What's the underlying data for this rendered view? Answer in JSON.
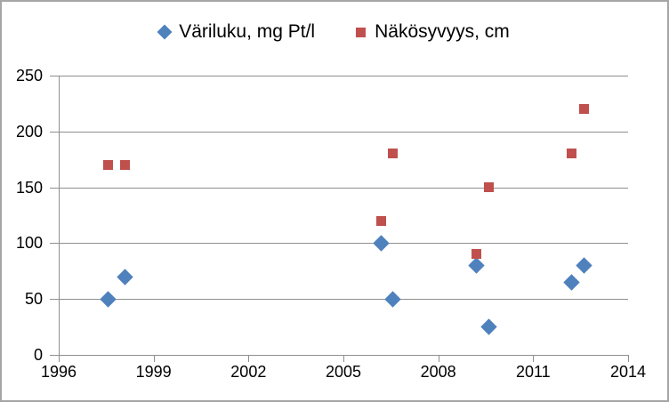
{
  "chart_data": {
    "type": "scatter",
    "title": "",
    "xlabel": "",
    "ylabel": "",
    "grid": "horizontal",
    "legend_position": "top",
    "x_axis": {
      "min": 1996,
      "max": 2014,
      "tick_interval": 3,
      "ticks": [
        1996,
        1999,
        2002,
        2005,
        2008,
        2011,
        2014
      ]
    },
    "y_axis": {
      "min": 0,
      "max": 250,
      "tick_interval": 50,
      "ticks": [
        0,
        50,
        100,
        150,
        200,
        250
      ]
    },
    "series": [
      {
        "name": "Väriluku, mg Pt/l",
        "marker": "diamond",
        "color": "#4F81BD",
        "points": [
          {
            "x": 1997.55,
            "y": 50
          },
          {
            "x": 1998.1,
            "y": 70
          },
          {
            "x": 2006.2,
            "y": 100
          },
          {
            "x": 2006.55,
            "y": 50
          },
          {
            "x": 2009.2,
            "y": 80
          },
          {
            "x": 2009.6,
            "y": 25
          },
          {
            "x": 2012.2,
            "y": 65
          },
          {
            "x": 2012.6,
            "y": 80
          }
        ]
      },
      {
        "name": "Näkösyvyys, cm",
        "marker": "square",
        "color": "#C0504D",
        "points": [
          {
            "x": 1997.55,
            "y": 170
          },
          {
            "x": 1998.1,
            "y": 170
          },
          {
            "x": 2006.2,
            "y": 120
          },
          {
            "x": 2006.55,
            "y": 180
          },
          {
            "x": 2009.2,
            "y": 90
          },
          {
            "x": 2009.6,
            "y": 150
          },
          {
            "x": 2012.2,
            "y": 180
          },
          {
            "x": 2012.6,
            "y": 220
          }
        ]
      }
    ]
  },
  "legend": {
    "items": [
      {
        "label": "Väriluku, mg Pt/l"
      },
      {
        "label": "Näkösyvyys, cm"
      }
    ]
  },
  "colors": {
    "series_variluku": "#4F81BD",
    "series_nakosyvyys": "#C0504D",
    "gridline": "#8F8F8F",
    "axis": "#8F8F8F",
    "frame_border": "#A6A6A6",
    "background": "#FFFFFF",
    "text": "#000000"
  }
}
